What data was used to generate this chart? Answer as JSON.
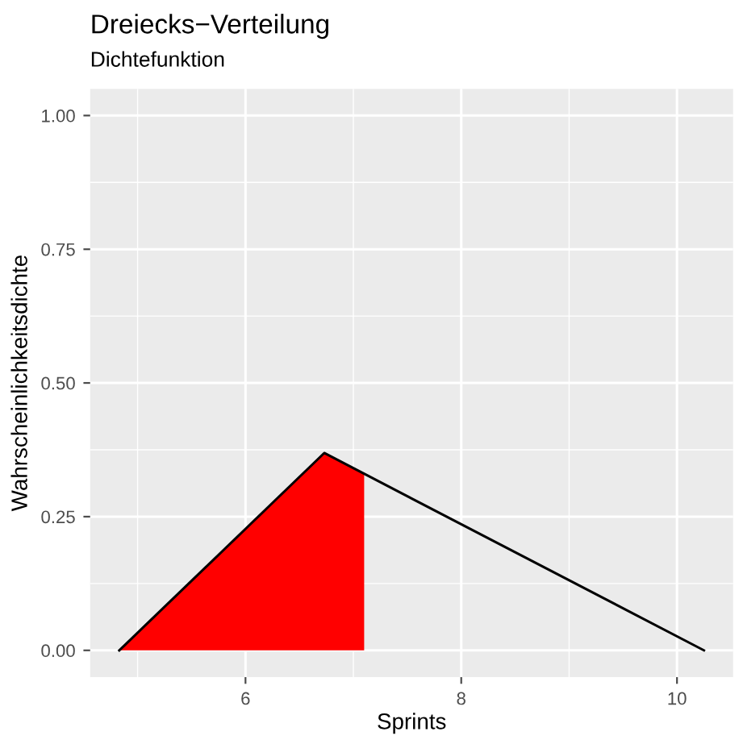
{
  "chart_data": {
    "type": "area",
    "title": "Dreiecks−Verteilung",
    "subtitle": "Dichtefunktion",
    "xlabel": "Sprints",
    "ylabel": "Wahrscheinlichkeitsdichte",
    "series": [
      {
        "color": "#ff0000",
        "x": [
          4.83,
          6.73,
          7.1
        ],
        "values": [
          0,
          0.369,
          0.33
        ]
      },
      {
        "type": "line",
        "color": "#000000",
        "x": [
          4.83,
          6.73,
          10.25
        ],
        "values": [
          0,
          0.369,
          0
        ]
      }
    ],
    "xlim": [
      4.56,
      10.52
    ],
    "xticks": [
      6,
      8,
      10
    ],
    "ylim": [
      -0.05,
      1.05
    ],
    "yticks": [
      {
        "value": 0,
        "label": "0.00"
      },
      {
        "value": 0.25,
        "label": "0.25"
      },
      {
        "value": 0.5,
        "label": "0.50"
      },
      {
        "value": 0.75,
        "label": "0.75"
      },
      {
        "value": 1,
        "label": "1.00"
      }
    ],
    "grid": true,
    "legend": false
  }
}
